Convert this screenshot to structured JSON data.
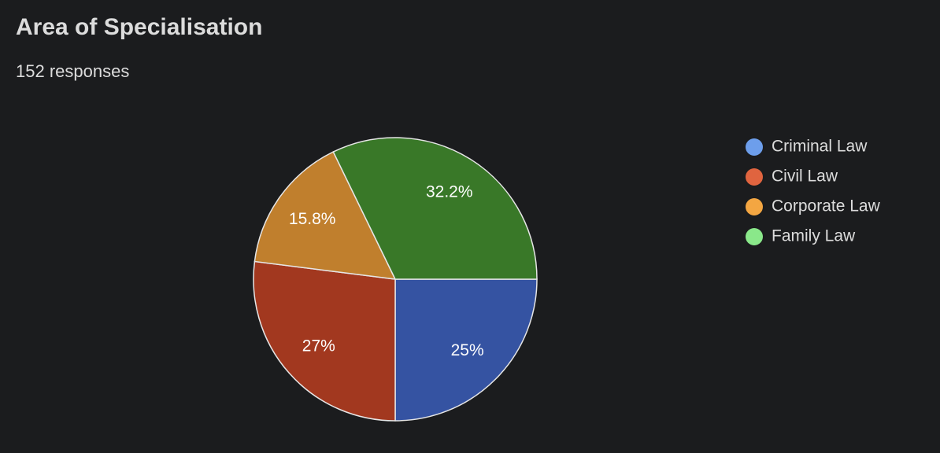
{
  "chart_data": {
    "type": "pie",
    "title": "Area of Specialisation",
    "subtitle": "152 responses",
    "categories": [
      "Criminal Law",
      "Civil Law",
      "Corporate Law",
      "Family Law"
    ],
    "values": [
      25,
      27,
      15.8,
      32.2
    ],
    "value_labels": [
      "25%",
      "27%",
      "15.8%",
      "32.2%"
    ],
    "colors": [
      "#3553a2",
      "#a2381f",
      "#c07f2d",
      "#397828"
    ],
    "legend_colors": [
      "#6d9eeb",
      "#e0643f",
      "#f3a642",
      "#8ae88a"
    ],
    "legend": "right"
  }
}
